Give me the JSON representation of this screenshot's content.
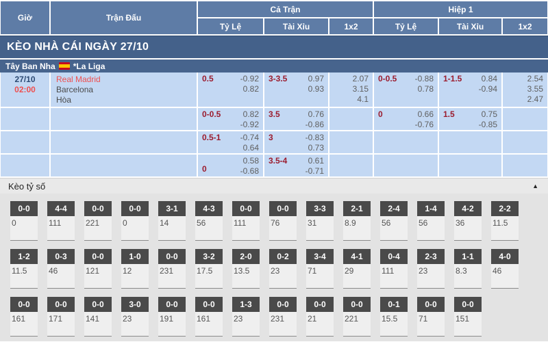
{
  "colors": {
    "header_blue": "#5e7ca6",
    "bar_blue": "#44618a",
    "league_blue": "#47648d",
    "cell_blue": "#c3d8f3",
    "handicap_maroon": "#9b1c2e",
    "odds_gray": "#5f5f5f",
    "hot_red": "#ee4f4f",
    "score_head_gray": "#4a4a4a",
    "section_gray": "#e3e3e3"
  },
  "header": {
    "col_time": "Giờ",
    "col_match": "Trận Đấu",
    "group_full": "Cả Trận",
    "group_half": "Hiệp 1",
    "sub_hdp": "Tỷ Lệ",
    "sub_ou": "Tài Xỉu",
    "sub_1x2": "1x2"
  },
  "section_bar": {
    "title": "KÈO NHÀ CÁI NGÀY 27/10"
  },
  "league_bar": {
    "country": "Tây Ban Nha",
    "flag_icon": "spain-flag",
    "league": "*La Liga"
  },
  "match": {
    "date": "27/10",
    "time": "02:00",
    "home": "Real Madrid",
    "away": "Barcelona",
    "draw_label": "Hòa"
  },
  "odds_rows": [
    {
      "ft_hdp": {
        "label": "0.5",
        "v1": "-0.92",
        "v2": "0.82"
      },
      "ft_ou": {
        "label": "3-3.5",
        "v1": "0.97",
        "v2": "0.93"
      },
      "ft_1x2": {
        "v1": "2.07",
        "v2": "3.15",
        "v3": "4.1"
      },
      "h1_hdp": {
        "label": "0-0.5",
        "v1": "-0.88",
        "v2": "0.78"
      },
      "h1_ou": {
        "label": "1-1.5",
        "v1": "0.84",
        "v2": "-0.94"
      },
      "h1_1x2": {
        "v1": "2.54",
        "v2": "3.55",
        "v3": "2.47"
      }
    },
    {
      "ft_hdp": {
        "label": "0-0.5",
        "v1": "0.82",
        "v2": "-0.92"
      },
      "ft_ou": {
        "label": "3.5",
        "v1": "0.76",
        "v2": "-0.86"
      },
      "ft_1x2": {
        "v1": "",
        "v2": "",
        "v3": ""
      },
      "h1_hdp": {
        "label": "0",
        "v1": "0.66",
        "v2": "-0.76"
      },
      "h1_ou": {
        "label": "1.5",
        "v1": "0.75",
        "v2": "-0.85"
      },
      "h1_1x2": {
        "v1": "",
        "v2": "",
        "v3": ""
      }
    },
    {
      "ft_hdp": {
        "label": "0.5-1",
        "v1": "-0.74",
        "v2": "0.64"
      },
      "ft_ou": {
        "label": "3",
        "v1": "-0.83",
        "v2": "0.73"
      },
      "ft_1x2": {
        "v1": "",
        "v2": "",
        "v3": ""
      },
      "h1_hdp": {
        "label": "",
        "v1": "",
        "v2": ""
      },
      "h1_ou": {
        "label": "",
        "v1": "",
        "v2": ""
      },
      "h1_1x2": {
        "v1": "",
        "v2": "",
        "v3": ""
      }
    },
    {
      "ft_hdp": {
        "label": "0",
        "v1": "0.58",
        "v2": "-0.68"
      },
      "ft_ou": {
        "label": "3.5-4",
        "v1": "0.61",
        "v2": "-0.71"
      },
      "ft_1x2": {
        "v1": "",
        "v2": "",
        "v3": ""
      },
      "h1_hdp": {
        "label": "",
        "v1": "",
        "v2": ""
      },
      "h1_ou": {
        "label": "",
        "v1": "",
        "v2": ""
      },
      "h1_1x2": {
        "v1": "",
        "v2": "",
        "v3": ""
      }
    }
  ],
  "score_section": {
    "title": "Kèo tỷ số",
    "collapse_icon": "▲",
    "rows": [
      [
        {
          "score": "0-0",
          "odds": "0"
        },
        {
          "score": "4-4",
          "odds": "111"
        },
        {
          "score": "0-0",
          "odds": "221"
        },
        {
          "score": "0-0",
          "odds": "0"
        },
        {
          "score": "3-1",
          "odds": "14"
        },
        {
          "score": "4-3",
          "odds": "56"
        },
        {
          "score": "0-0",
          "odds": "111"
        },
        {
          "score": "0-0",
          "odds": "76"
        },
        {
          "score": "3-3",
          "odds": "31"
        },
        {
          "score": "2-1",
          "odds": "8.9"
        },
        {
          "score": "2-4",
          "odds": "56"
        },
        {
          "score": "1-4",
          "odds": "56"
        },
        {
          "score": "4-2",
          "odds": "36"
        },
        {
          "score": "2-2",
          "odds": "11.5"
        }
      ],
      [
        {
          "score": "1-2",
          "odds": "11.5"
        },
        {
          "score": "0-3",
          "odds": "46"
        },
        {
          "score": "0-0",
          "odds": "121"
        },
        {
          "score": "1-0",
          "odds": "12"
        },
        {
          "score": "0-0",
          "odds": "231"
        },
        {
          "score": "3-2",
          "odds": "17.5"
        },
        {
          "score": "2-0",
          "odds": "13.5"
        },
        {
          "score": "0-2",
          "odds": "23"
        },
        {
          "score": "3-4",
          "odds": "71"
        },
        {
          "score": "4-1",
          "odds": "29"
        },
        {
          "score": "0-4",
          "odds": "111"
        },
        {
          "score": "2-3",
          "odds": "23"
        },
        {
          "score": "1-1",
          "odds": "8.3"
        },
        {
          "score": "4-0",
          "odds": "46"
        }
      ],
      [
        {
          "score": "0-0",
          "odds": "161"
        },
        {
          "score": "0-0",
          "odds": "171"
        },
        {
          "score": "0-0",
          "odds": "141"
        },
        {
          "score": "3-0",
          "odds": "23"
        },
        {
          "score": "0-0",
          "odds": "191"
        },
        {
          "score": "0-0",
          "odds": "161"
        },
        {
          "score": "1-3",
          "odds": "23"
        },
        {
          "score": "0-0",
          "odds": "231"
        },
        {
          "score": "0-0",
          "odds": "21"
        },
        {
          "score": "0-0",
          "odds": "221"
        },
        {
          "score": "0-1",
          "odds": "15.5"
        },
        {
          "score": "0-0",
          "odds": "71"
        },
        {
          "score": "0-0",
          "odds": "151"
        }
      ]
    ]
  }
}
